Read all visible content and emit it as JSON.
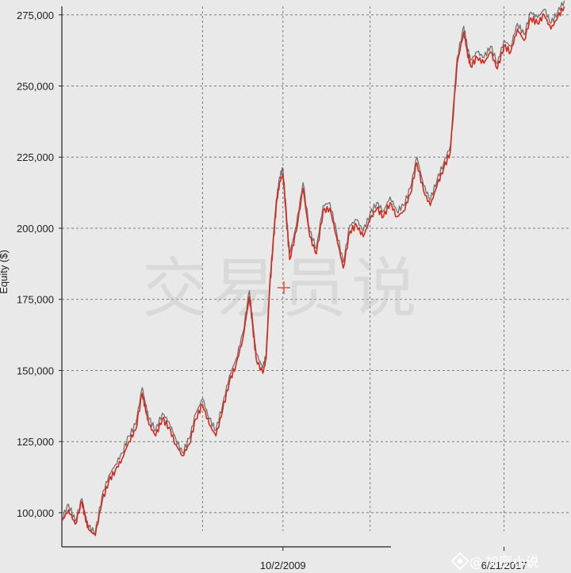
{
  "chart_data": {
    "type": "line",
    "ylabel": "Equity ($)",
    "xlabel": "",
    "ylim": [
      88000,
      278000
    ],
    "y_ticks": [
      {
        "value": 100000,
        "label": "100,000"
      },
      {
        "value": 125000,
        "label": "125,000"
      },
      {
        "value": 150000,
        "label": "150,000"
      },
      {
        "value": 175000,
        "label": "175,000"
      },
      {
        "value": 200000,
        "label": "200,000"
      },
      {
        "value": 225000,
        "label": "225,000"
      },
      {
        "value": 250000,
        "label": "250,000"
      },
      {
        "value": 275000,
        "label": "275,000"
      }
    ],
    "x_ticks": [
      {
        "value": 0.33,
        "label": "10/2/2009"
      },
      {
        "value": 0.66,
        "label": "6/21/2017"
      }
    ],
    "grid": true,
    "legend": "none",
    "series": [
      {
        "color": "#d42a1c",
        "x": [
          0.0,
          0.01,
          0.02,
          0.03,
          0.035,
          0.04,
          0.05,
          0.06,
          0.07,
          0.08,
          0.09,
          0.1,
          0.11,
          0.12,
          0.125,
          0.13,
          0.14,
          0.15,
          0.16,
          0.17,
          0.18,
          0.19,
          0.2,
          0.21,
          0.22,
          0.23,
          0.24,
          0.25,
          0.26,
          0.27,
          0.28,
          0.285,
          0.29,
          0.3,
          0.305,
          0.31,
          0.315,
          0.32,
          0.325,
          0.33,
          0.335,
          0.34,
          0.35,
          0.36,
          0.37,
          0.38,
          0.39,
          0.4,
          0.41,
          0.42,
          0.43,
          0.44,
          0.45,
          0.46,
          0.47,
          0.48,
          0.49,
          0.5,
          0.51,
          0.52,
          0.53,
          0.54,
          0.55,
          0.56,
          0.57,
          0.58,
          0.59,
          0.6,
          0.605,
          0.61,
          0.62,
          0.63,
          0.64,
          0.65,
          0.66,
          0.67,
          0.68,
          0.69,
          0.7,
          0.71,
          0.72,
          0.73,
          0.74,
          0.75
        ],
        "values": [
          97000,
          101000,
          96000,
          104000,
          98000,
          94000,
          92000,
          104000,
          111000,
          115000,
          119000,
          125000,
          129000,
          142000,
          136000,
          131000,
          127000,
          133000,
          130000,
          124000,
          120000,
          124000,
          133000,
          138000,
          131000,
          127000,
          136000,
          146000,
          152000,
          161000,
          176000,
          165000,
          154000,
          149000,
          154000,
          178000,
          193000,
          208000,
          216000,
          219000,
          204000,
          189000,
          199000,
          214000,
          197000,
          191000,
          206000,
          207000,
          197000,
          186000,
          199000,
          201000,
          197000,
          203000,
          207000,
          204000,
          209000,
          204000,
          206000,
          212000,
          223000,
          213000,
          208000,
          215000,
          221000,
          227000,
          258000,
          269000,
          262000,
          257000,
          260000,
          258000,
          262000,
          256000,
          264000,
          262000,
          270000,
          266000,
          274000,
          272000,
          275000,
          270000,
          274000,
          278000
        ]
      },
      {
        "color": "#4a4a4a",
        "x": [
          0.0,
          0.01,
          0.02,
          0.03,
          0.035,
          0.04,
          0.05,
          0.06,
          0.07,
          0.08,
          0.09,
          0.1,
          0.11,
          0.12,
          0.125,
          0.13,
          0.14,
          0.15,
          0.16,
          0.17,
          0.18,
          0.19,
          0.2,
          0.21,
          0.22,
          0.23,
          0.24,
          0.25,
          0.26,
          0.27,
          0.28,
          0.285,
          0.29,
          0.3,
          0.305,
          0.31,
          0.315,
          0.32,
          0.325,
          0.33,
          0.335,
          0.34,
          0.35,
          0.36,
          0.37,
          0.38,
          0.39,
          0.4,
          0.41,
          0.42,
          0.43,
          0.44,
          0.45,
          0.46,
          0.47,
          0.48,
          0.49,
          0.5,
          0.51,
          0.52,
          0.53,
          0.54,
          0.55,
          0.56,
          0.57,
          0.58,
          0.59,
          0.6,
          0.605,
          0.61,
          0.62,
          0.63,
          0.64,
          0.65,
          0.66,
          0.67,
          0.68,
          0.69,
          0.7,
          0.71,
          0.72,
          0.73,
          0.74,
          0.75
        ],
        "values": [
          98000,
          103000,
          97000,
          105000,
          99000,
          95000,
          93000,
          106000,
          113000,
          117000,
          121000,
          127000,
          131000,
          144000,
          138000,
          133000,
          129000,
          135000,
          132000,
          126000,
          121000,
          126000,
          135000,
          140000,
          133000,
          129000,
          138000,
          148000,
          154000,
          163000,
          178000,
          167000,
          156000,
          151000,
          156000,
          180000,
          195000,
          210000,
          218000,
          221000,
          206000,
          191000,
          201000,
          216000,
          199000,
          193000,
          208000,
          209000,
          199000,
          188000,
          201000,
          203000,
          199000,
          205000,
          209000,
          206000,
          211000,
          206000,
          208000,
          214000,
          225000,
          215000,
          210000,
          217000,
          223000,
          229000,
          260000,
          271000,
          264000,
          259000,
          262000,
          260000,
          264000,
          258000,
          266000,
          264000,
          272000,
          268000,
          276000,
          274000,
          277000,
          272000,
          276000,
          280000
        ]
      }
    ]
  },
  "watermark": {
    "text": "交易员说"
  },
  "brand": {
    "text": "加密小说"
  },
  "colors": {
    "background": "#e9e9e9",
    "grid": "#7a7a7a",
    "series_main": "#d42a1c",
    "series_shadow": "#4a4a4a",
    "marker": "#e05a3a"
  }
}
